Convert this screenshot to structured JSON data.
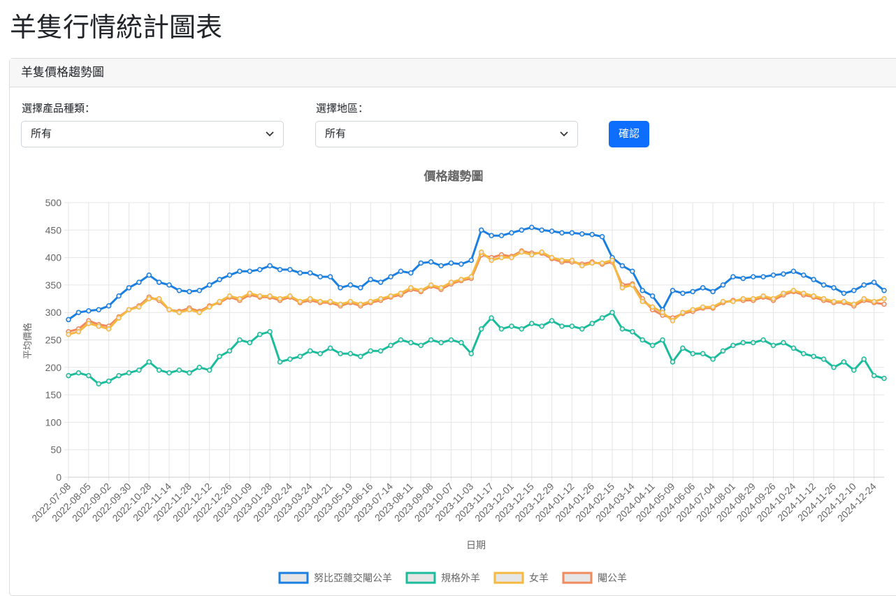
{
  "header": {
    "title": "羊隻行情統計圖表"
  },
  "card": {
    "title": "羊隻價格趨勢圖",
    "product_label": "選擇產品種類：",
    "product_value": "所有",
    "region_label": "選擇地區：",
    "region_value": "所有",
    "button": "確認"
  },
  "chart_data": {
    "type": "line",
    "title": "價格趨勢圖",
    "y_label": "平均價格",
    "x_label": "日期",
    "categories": [
      "2022-07-08",
      null,
      "2022-08-05",
      null,
      "2022-09-02",
      null,
      "2022-09-30",
      null,
      "2022-10-28",
      null,
      "2022-11-14",
      null,
      "2022-11-28",
      null,
      "2022-12-12",
      null,
      "2022-12-26",
      null,
      "2023-01-09",
      null,
      "2023-01-28",
      null,
      "2023-02-24",
      null,
      "2023-03-24",
      null,
      "2023-04-21",
      null,
      "2023-05-19",
      null,
      "2023-06-16",
      null,
      "2023-07-14",
      null,
      "2023-08-11",
      null,
      "2023-09-08",
      null,
      "2023-10-07",
      null,
      "2023-11-03",
      null,
      "2023-11-17",
      null,
      "2023-12-01",
      null,
      "2023-12-15",
      null,
      "2023-12-29",
      null,
      "2024-01-12",
      null,
      "2024-01-26",
      null,
      "2024-02-15",
      null,
      "2024-03-14",
      null,
      "2024-04-11",
      null,
      "2024-05-09",
      null,
      "2024-06-06",
      null,
      "2024-07-04",
      null,
      "2024-08-01",
      null,
      "2024-08-29",
      null,
      "2024-09-26",
      null,
      "2024-10-24",
      null,
      "2024-11-12",
      null,
      "2024-11-26",
      null,
      "2024-12-10",
      null,
      "2024-12-24",
      null
    ],
    "series": [
      {
        "name": "努比亞雜交閹公羊",
        "color": "#1a7fe0",
        "values": [
          287,
          300,
          303,
          305,
          312,
          330,
          345,
          355,
          368,
          355,
          350,
          340,
          338,
          340,
          350,
          360,
          368,
          375,
          375,
          378,
          385,
          378,
          378,
          372,
          372,
          365,
          365,
          345,
          350,
          345,
          360,
          355,
          365,
          375,
          372,
          390,
          392,
          385,
          390,
          388,
          395,
          450,
          440,
          440,
          445,
          450,
          455,
          450,
          448,
          445,
          445,
          443,
          442,
          438,
          400,
          385,
          375,
          340,
          330,
          305,
          340,
          335,
          338,
          345,
          338,
          350,
          365,
          362,
          365,
          365,
          368,
          370,
          375,
          368,
          360,
          350,
          345,
          335,
          340,
          350,
          355,
          340
        ]
      },
      {
        "name": "規格外羊",
        "color": "#1abc9c",
        "values": [
          185,
          190,
          185,
          170,
          175,
          185,
          190,
          195,
          210,
          195,
          190,
          195,
          190,
          200,
          195,
          220,
          230,
          250,
          245,
          260,
          265,
          210,
          215,
          220,
          230,
          225,
          235,
          225,
          225,
          220,
          230,
          230,
          240,
          250,
          245,
          240,
          250,
          245,
          250,
          245,
          225,
          270,
          290,
          270,
          275,
          270,
          280,
          275,
          285,
          275,
          275,
          270,
          280,
          290,
          300,
          270,
          265,
          250,
          240,
          250,
          210,
          235,
          225,
          225,
          215,
          230,
          240,
          245,
          245,
          250,
          240,
          245,
          235,
          225,
          220,
          215,
          200,
          210,
          195,
          215,
          185,
          180
        ]
      },
      {
        "name": "女羊",
        "color": "#f5b942",
        "values": [
          260,
          265,
          280,
          275,
          270,
          290,
          305,
          310,
          325,
          325,
          305,
          300,
          305,
          300,
          310,
          320,
          330,
          325,
          335,
          330,
          330,
          325,
          330,
          320,
          325,
          320,
          320,
          315,
          320,
          315,
          320,
          325,
          330,
          335,
          345,
          340,
          350,
          345,
          355,
          360,
          365,
          410,
          395,
          400,
          400,
          410,
          405,
          410,
          400,
          395,
          395,
          385,
          390,
          390,
          395,
          345,
          350,
          320,
          310,
          300,
          285,
          300,
          305,
          310,
          310,
          320,
          320,
          325,
          325,
          330,
          325,
          335,
          340,
          335,
          330,
          325,
          320,
          320,
          315,
          325,
          320,
          325
        ]
      },
      {
        "name": "閹公羊",
        "color": "#f08a5d",
        "values": [
          265,
          270,
          285,
          278,
          275,
          292,
          305,
          312,
          328,
          322,
          305,
          302,
          308,
          302,
          312,
          318,
          328,
          322,
          332,
          328,
          328,
          322,
          328,
          318,
          322,
          318,
          318,
          312,
          318,
          312,
          318,
          322,
          328,
          332,
          342,
          338,
          348,
          342,
          352,
          358,
          362,
          405,
          400,
          405,
          402,
          412,
          408,
          408,
          398,
          392,
          392,
          388,
          392,
          388,
          392,
          350,
          352,
          325,
          305,
          295,
          290,
          298,
          302,
          308,
          308,
          318,
          322,
          322,
          322,
          328,
          322,
          332,
          338,
          332,
          328,
          322,
          318,
          318,
          312,
          322,
          318,
          315
        ]
      }
    ],
    "ylim": [
      0,
      500
    ],
    "yticks": [
      0,
      50,
      100,
      150,
      200,
      250,
      300,
      350,
      400,
      450,
      500
    ],
    "grid": true,
    "legend": "bottom"
  }
}
